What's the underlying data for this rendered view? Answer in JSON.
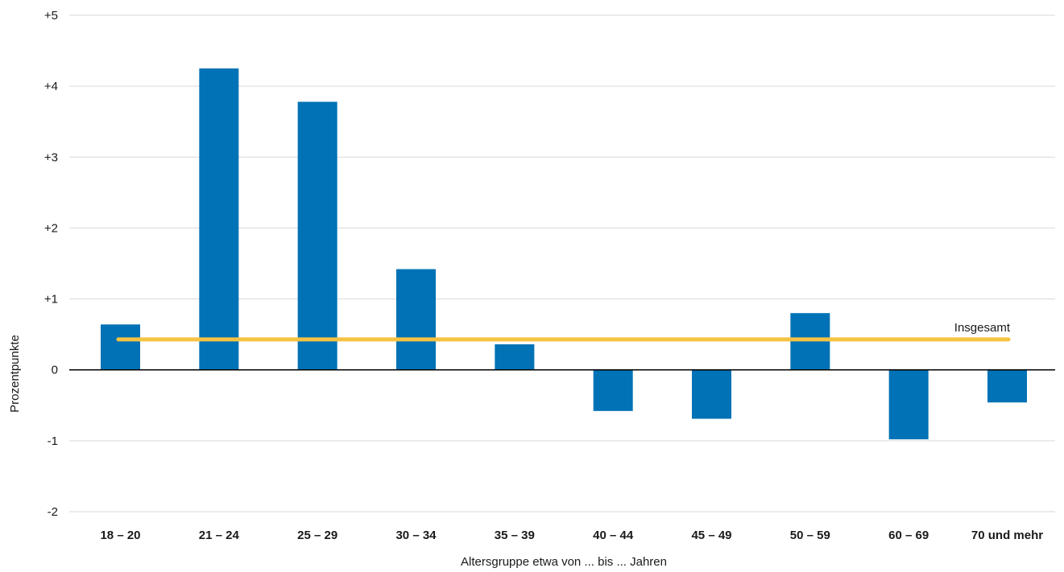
{
  "chart_data": {
    "type": "bar",
    "categories": [
      "18 – 20",
      "21 – 24",
      "25 – 29",
      "30 – 34",
      "35 – 39",
      "40 – 44",
      "45 – 49",
      "50 – 59",
      "60 – 69",
      "70 und mehr"
    ],
    "values": [
      0.64,
      4.25,
      3.78,
      1.42,
      0.36,
      -0.58,
      -0.69,
      0.8,
      -0.98,
      -0.46
    ],
    "reference_line": {
      "label": "Insgesamt",
      "value": 0.43,
      "color": "#f5c242"
    },
    "ylim": [
      -2,
      5
    ],
    "yticks": [
      {
        "value": 5,
        "label": "+5"
      },
      {
        "value": 4,
        "label": "+4"
      },
      {
        "value": 3,
        "label": "+3"
      },
      {
        "value": 2,
        "label": "+2"
      },
      {
        "value": 1,
        "label": "+1"
      },
      {
        "value": 0,
        "label": "0"
      },
      {
        "value": -1,
        "label": "-1"
      },
      {
        "value": -2,
        "label": "-2"
      }
    ],
    "xlabel": "Altersgruppe etwa von ... bis ... Jahren",
    "ylabel": "Prozentpunkte",
    "grid": true,
    "bar_color": "#0072b5",
    "grid_color": "#d9d9d9",
    "zero_line_color": "#000000"
  }
}
